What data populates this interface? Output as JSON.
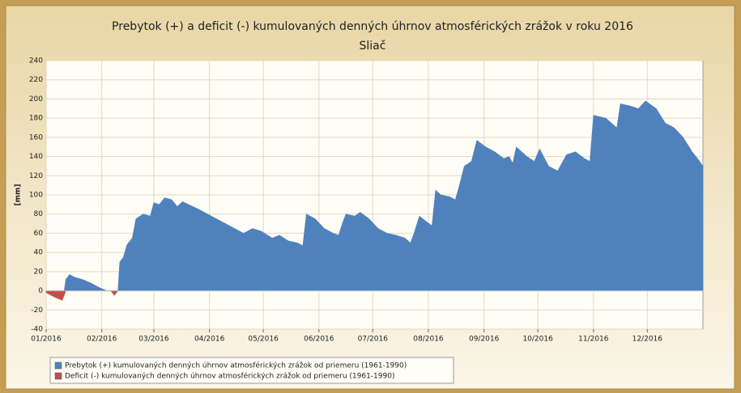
{
  "chart_data": {
    "type": "area",
    "title": "Prebytok (+) a deficit (-) kumulovaných denných úhrnov atmosférických zrážok v roku 2016",
    "subtitle": "Sliač",
    "y_label": "[mm]",
    "xlim": [
      0,
      366
    ],
    "xticks": [
      {
        "value": 0,
        "label": "01/2016"
      },
      {
        "value": 31,
        "label": "02/2016"
      },
      {
        "value": 60,
        "label": "03/2016"
      },
      {
        "value": 91,
        "label": "04/2016"
      },
      {
        "value": 121,
        "label": "05/2016"
      },
      {
        "value": 152,
        "label": "06/2016"
      },
      {
        "value": 182,
        "label": "07/2016"
      },
      {
        "value": 213,
        "label": "08/2016"
      },
      {
        "value": 244,
        "label": "09/2016"
      },
      {
        "value": 274,
        "label": "10/2016"
      },
      {
        "value": 305,
        "label": "11/2016"
      },
      {
        "value": 335,
        "label": "12/2016"
      }
    ],
    "ylim": [
      -40,
      240
    ],
    "yticks": [
      -40,
      -20,
      0,
      20,
      40,
      60,
      80,
      100,
      120,
      140,
      160,
      180,
      200,
      220,
      240
    ],
    "grid": true,
    "legend": "bottom-left",
    "series": [
      {
        "name": "Prebytok (+) kumulovaných denných úhrnov atmosférických zrážok od priemeru (1961-1990)",
        "color": "#4f81bd",
        "x": [
          10,
          11,
          13,
          16,
          20,
          25,
          30,
          34,
          40,
          41,
          43,
          45,
          48,
          50,
          54,
          58,
          60,
          63,
          66,
          70,
          73,
          76,
          85,
          95,
          105,
          110,
          115,
          120,
          126,
          130,
          135,
          140,
          143,
          145,
          150,
          155,
          160,
          163,
          165,
          167,
          172,
          175,
          180,
          185,
          190,
          195,
          200,
          203,
          205,
          208,
          212,
          215,
          217,
          220,
          225,
          228,
          230,
          233,
          237,
          240,
          245,
          250,
          255,
          258,
          260,
          262,
          268,
          272,
          275,
          280,
          285,
          290,
          295,
          300,
          303,
          305,
          312,
          318,
          320,
          325,
          330,
          334,
          340,
          345,
          350,
          355,
          360,
          363,
          366
        ],
        "values": [
          0,
          12,
          17,
          14,
          12,
          8,
          3,
          0,
          0,
          30,
          35,
          48,
          55,
          75,
          80,
          78,
          92,
          90,
          97,
          95,
          88,
          93,
          85,
          75,
          65,
          60,
          65,
          62,
          55,
          58,
          52,
          50,
          47,
          80,
          75,
          65,
          60,
          58,
          70,
          80,
          78,
          82,
          75,
          65,
          60,
          58,
          55,
          50,
          60,
          78,
          72,
          68,
          105,
          100,
          98,
          95,
          108,
          130,
          135,
          157,
          150,
          145,
          138,
          140,
          133,
          150,
          140,
          135,
          148,
          130,
          125,
          142,
          145,
          138,
          135,
          183,
          180,
          170,
          195,
          193,
          190,
          198,
          190,
          175,
          170,
          160,
          145,
          138,
          130
        ]
      },
      {
        "name": "Deficit (-) kumulovaných denných úhrnov atmosférických zrážok od priemeru (1961-1990)",
        "color": "#c0504d",
        "x": [
          0,
          5,
          9,
          11,
          36,
          38,
          40
        ],
        "values": [
          -2,
          -7,
          -10,
          0,
          0,
          -5,
          0
        ]
      }
    ]
  }
}
